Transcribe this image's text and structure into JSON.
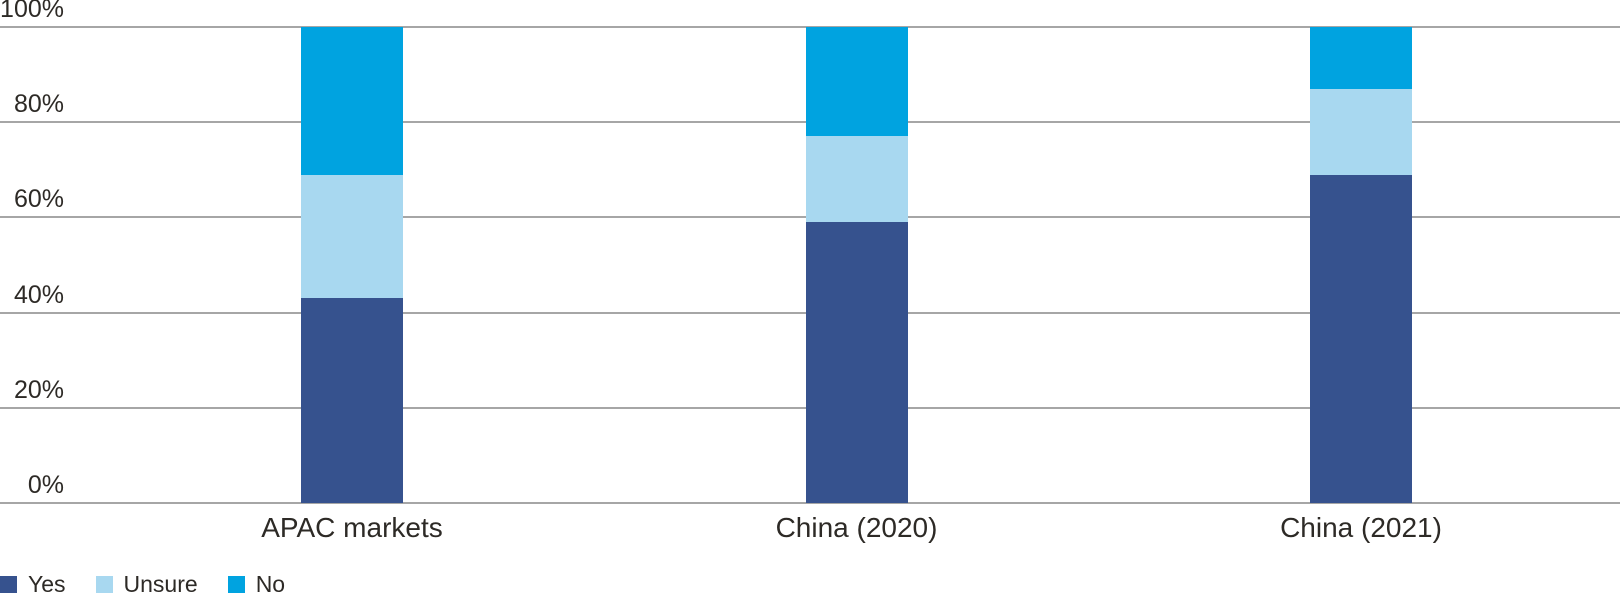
{
  "colors": {
    "grid": "#A6A6A6",
    "text": "#2D2A26",
    "background": "#FFFFFF"
  },
  "chart_data": {
    "type": "bar",
    "stacked": true,
    "title": "",
    "xlabel": "",
    "ylabel": "",
    "categories": [
      "APAC markets",
      "China (2020)",
      "China (2021)"
    ],
    "series": [
      {
        "name": "Yes",
        "color": "#36528E",
        "values": [
          43,
          59,
          69
        ]
      },
      {
        "name": "Unsure",
        "color": "#A8D8F0",
        "values": [
          26,
          18,
          18
        ]
      },
      {
        "name": "No",
        "color": "#00A3E0",
        "values": [
          31,
          23,
          13
        ]
      }
    ],
    "ylim": [
      0,
      100
    ],
    "yticks": [
      {
        "label": "100%",
        "value": 100
      },
      {
        "label": "80%",
        "value": 80
      },
      {
        "label": "60%",
        "value": 60
      },
      {
        "label": "40%",
        "value": 40
      },
      {
        "label": "20%",
        "value": 20
      },
      {
        "label": "0%",
        "value": 0
      }
    ],
    "grid": true,
    "legend_position": "bottom-left"
  }
}
